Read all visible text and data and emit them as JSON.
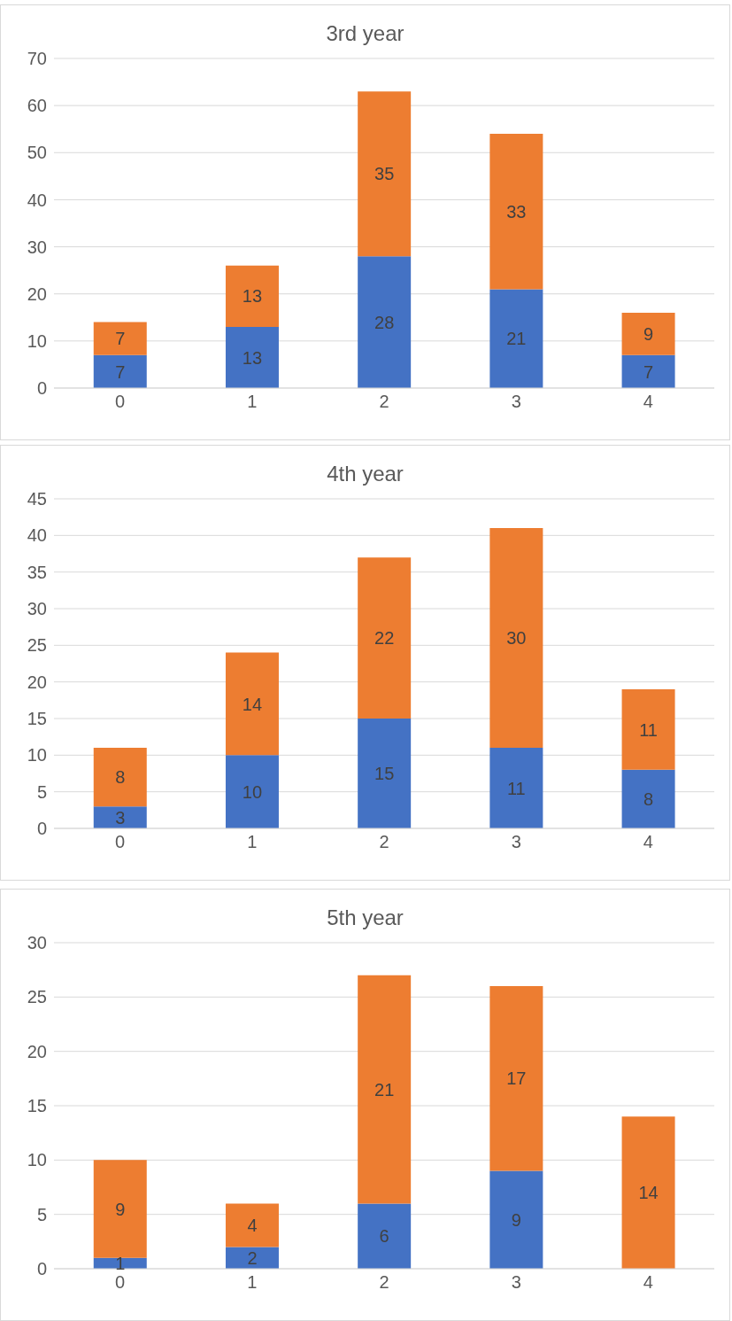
{
  "chart_data": [
    {
      "type": "bar",
      "title": "3rd year",
      "categories": [
        "0",
        "1",
        "2",
        "3",
        "4"
      ],
      "stacked": true,
      "data_labels": true,
      "grid": "y",
      "legend": false,
      "ylim": [
        0,
        70
      ],
      "yticks": [
        0,
        10,
        20,
        30,
        40,
        50,
        60,
        70
      ],
      "series": [
        {
          "color": "#4472c4",
          "values": [
            7,
            13,
            28,
            21,
            7
          ]
        },
        {
          "color": "#ed7d31",
          "values": [
            7,
            13,
            35,
            33,
            9
          ]
        }
      ]
    },
    {
      "type": "bar",
      "title": "4th year",
      "categories": [
        "0",
        "1",
        "2",
        "3",
        "4"
      ],
      "stacked": true,
      "data_labels": true,
      "grid": "y",
      "legend": false,
      "ylim": [
        0,
        45
      ],
      "yticks": [
        0,
        5,
        10,
        15,
        20,
        25,
        30,
        35,
        40,
        45
      ],
      "series": [
        {
          "color": "#4472c4",
          "values": [
            3,
            10,
            15,
            11,
            8
          ]
        },
        {
          "color": "#ed7d31",
          "values": [
            8,
            14,
            22,
            30,
            11
          ]
        }
      ]
    },
    {
      "type": "bar",
      "title": "5th year",
      "categories": [
        "0",
        "1",
        "2",
        "3",
        "4"
      ],
      "stacked": true,
      "grid": "y",
      "legend": false,
      "ylim": [
        0,
        30
      ],
      "yticks": [
        0,
        5,
        10,
        15,
        20,
        25,
        30
      ],
      "series": [
        {
          "color": "#4472c4",
          "values": [
            1,
            2,
            6,
            9,
            0
          ],
          "value_labels": [
            "1",
            "2",
            "6",
            "9",
            null
          ]
        },
        {
          "color": "#ed7d31",
          "values": [
            9,
            4,
            21,
            17,
            14
          ],
          "value_labels": [
            "9",
            "4",
            "21",
            "17",
            "14"
          ]
        }
      ]
    }
  ]
}
